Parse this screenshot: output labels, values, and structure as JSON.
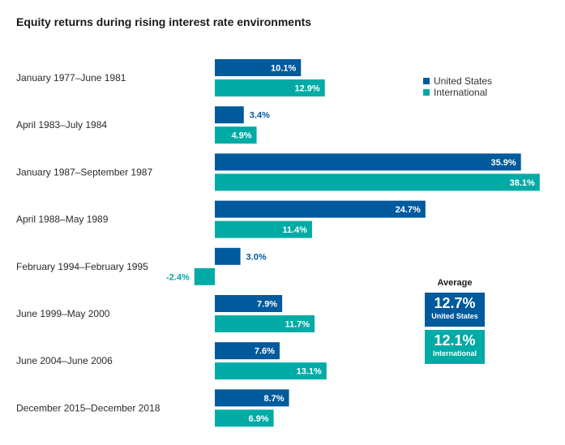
{
  "chart_data": {
    "type": "bar",
    "orientation": "horizontal",
    "title": "Equity returns during rising interest rate environments",
    "categories": [
      "January 1977–June 1981",
      "April 1983–July 1984",
      "January 1987–September 1987",
      "April 1988–May 1989",
      "February 1994–February 1995",
      "June 1999–May 2000",
      "June 2004–June 2006",
      "December 2015–December 2018"
    ],
    "series": [
      {
        "name": "United States",
        "color": "#005a9c",
        "values": [
          10.1,
          3.4,
          35.9,
          24.7,
          3.0,
          7.9,
          7.6,
          8.7
        ],
        "labels": [
          "10.1%",
          "3.4%",
          "35.9%",
          "24.7%",
          "3.0%",
          "7.9%",
          "7.6%",
          "8.7%"
        ]
      },
      {
        "name": "International",
        "color": "#00aba5",
        "values": [
          12.9,
          4.9,
          38.1,
          11.4,
          -2.4,
          11.7,
          13.1,
          6.9
        ],
        "labels": [
          "12.9%",
          "4.9%",
          "38.1%",
          "11.4%",
          "-2.4%",
          "11.7%",
          "13.1%",
          "6.9%"
        ]
      }
    ],
    "legend_position": "top-right",
    "grid": false
  },
  "average": {
    "heading": "Average",
    "boxes": [
      {
        "value": "12.7%",
        "label": "United States",
        "color": "#005a9c"
      },
      {
        "value": "12.1%",
        "label": "International",
        "color": "#00aba5"
      }
    ]
  }
}
